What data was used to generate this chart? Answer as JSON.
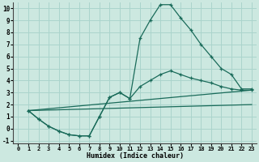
{
  "xlabel": "Humidex (Indice chaleur)",
  "background_color": "#cce8e0",
  "grid_color": "#aad4cc",
  "line_color": "#1a6b5a",
  "xlim": [
    -0.5,
    23.5
  ],
  "ylim": [
    -1.2,
    10.5
  ],
  "xticks": [
    0,
    1,
    2,
    3,
    4,
    5,
    6,
    7,
    8,
    9,
    10,
    11,
    12,
    13,
    14,
    15,
    16,
    17,
    18,
    19,
    20,
    21,
    22,
    23
  ],
  "yticks": [
    -1,
    0,
    1,
    2,
    3,
    4,
    5,
    6,
    7,
    8,
    9,
    10
  ],
  "line1_x": [
    1,
    2,
    3,
    4,
    5,
    6,
    7,
    8,
    9,
    10,
    11,
    12,
    13,
    14,
    15,
    16,
    17,
    18,
    19,
    20,
    21,
    22,
    23
  ],
  "line1_y": [
    1.5,
    0.8,
    0.2,
    -0.2,
    -0.5,
    -0.6,
    -0.6,
    1.0,
    2.6,
    3.0,
    2.5,
    7.5,
    9.0,
    10.3,
    10.3,
    9.2,
    8.2,
    7.0,
    6.0,
    5.0,
    4.5,
    3.3,
    3.3
  ],
  "line2_x": [
    1,
    2,
    3,
    4,
    5,
    6,
    7,
    8,
    9,
    10,
    11,
    12,
    13,
    14,
    15,
    16,
    17,
    18,
    19,
    20,
    21,
    22,
    23
  ],
  "line2_y": [
    1.5,
    0.8,
    0.2,
    -0.2,
    -0.5,
    -0.6,
    -0.6,
    1.0,
    2.6,
    3.0,
    2.5,
    3.5,
    4.0,
    4.5,
    4.8,
    4.5,
    4.2,
    4.0,
    3.8,
    3.5,
    3.3,
    3.2,
    3.2
  ],
  "line3_x": [
    1,
    23
  ],
  "line3_y": [
    1.5,
    3.2
  ],
  "line4_x": [
    1,
    23
  ],
  "line4_y": [
    1.5,
    2.0
  ]
}
